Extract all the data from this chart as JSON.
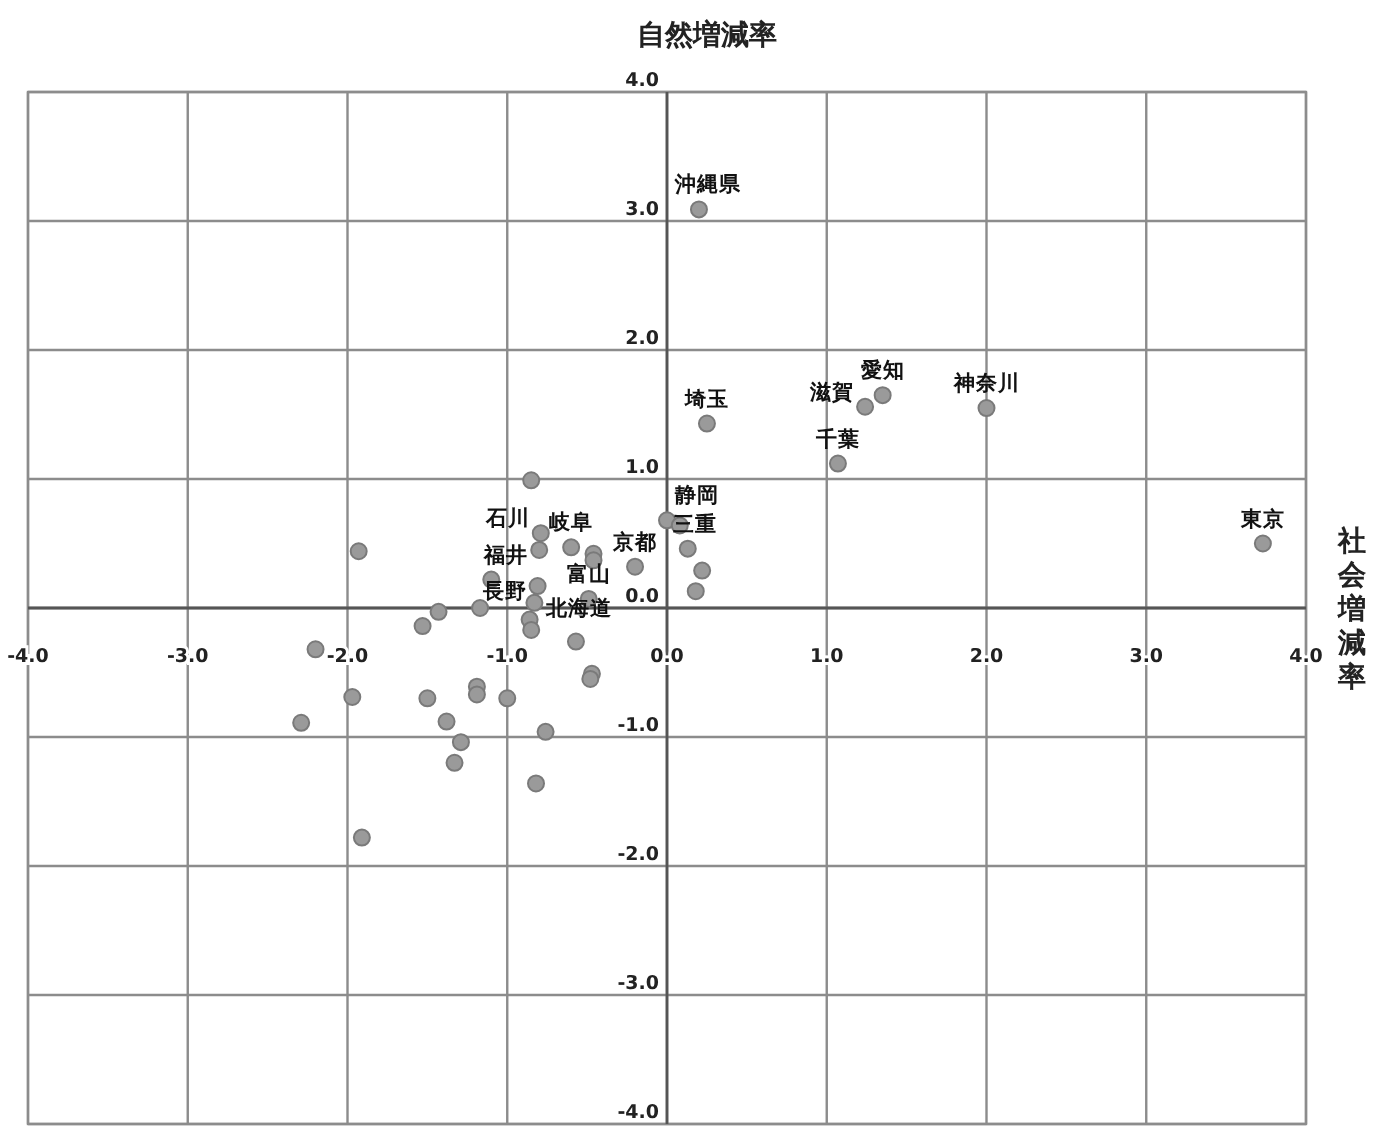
{
  "chart_data": {
    "type": "scatter",
    "ylabel": "自然増減率",
    "xlabel": "社会増減率",
    "color": "#9a9a9a",
    "marker": "circle",
    "grid": true,
    "xlim": [
      -4,
      4
    ],
    "ylim": [
      -4,
      4
    ],
    "xticks": [
      {
        "value": -4,
        "label": "-4.0"
      },
      {
        "value": -3,
        "label": "-3.0"
      },
      {
        "value": -2,
        "label": "-2.0"
      },
      {
        "value": -1,
        "label": "-1.0"
      },
      {
        "value": 0,
        "label": "0.0"
      },
      {
        "value": 1,
        "label": "1.0"
      },
      {
        "value": 2,
        "label": "2.0"
      },
      {
        "value": 3,
        "label": "3.0"
      },
      {
        "value": 4,
        "label": "4.0"
      }
    ],
    "yticks": [
      {
        "value": -4,
        "label": "-4.0"
      },
      {
        "value": -3,
        "label": "-3.0"
      },
      {
        "value": -2,
        "label": "-2.0"
      },
      {
        "value": -1,
        "label": "-1.0"
      },
      {
        "value": 0,
        "label": "0.0"
      },
      {
        "value": 1,
        "label": "1.0"
      },
      {
        "value": 2,
        "label": "2.0"
      },
      {
        "value": 3,
        "label": "3.0"
      },
      {
        "value": 4,
        "label": "4.0"
      }
    ],
    "x": [
      3.73,
      2.0,
      1.35,
      1.24,
      1.07,
      0.25,
      0.2,
      0.0,
      0.08,
      0.13,
      0.22,
      0.18,
      -0.2,
      -0.6,
      -0.46,
      -0.46,
      -0.49,
      -0.79,
      -0.8,
      -0.85,
      -0.81,
      -0.83,
      -1.1,
      -1.93,
      -1.17,
      -1.43,
      -1.53,
      -0.86,
      -0.85,
      -0.57,
      -0.47,
      -0.48,
      -2.2,
      -1.97,
      -2.29,
      -1.91,
      -1.5,
      -1.19,
      -1.19,
      -1.0,
      -1.38,
      -1.29,
      -1.33,
      -0.76,
      -0.82
    ],
    "values": [
      0.5,
      1.55,
      1.65,
      1.56,
      1.12,
      1.43,
      3.09,
      0.68,
      0.64,
      0.46,
      0.29,
      0.13,
      0.32,
      0.47,
      0.42,
      0.37,
      0.07,
      0.58,
      0.45,
      0.99,
      0.17,
      0.04,
      0.22,
      0.44,
      0.0,
      -0.03,
      -0.14,
      -0.09,
      -0.17,
      -0.26,
      -0.51,
      -0.55,
      -0.32,
      -0.69,
      -0.89,
      -1.78,
      -0.7,
      -0.61,
      -0.67,
      -0.7,
      -0.88,
      -1.04,
      -1.2,
      -0.96,
      -1.36
    ],
    "annotations": [
      {
        "text": "東京",
        "x": 3.73,
        "y": 0.5
      },
      {
        "text": "神奈川",
        "x": 2.0,
        "y": 1.55
      },
      {
        "text": "愛知",
        "x": 1.35,
        "y": 1.65
      },
      {
        "text": "滋賀",
        "x": 1.24,
        "y": 1.56
      },
      {
        "text": "千葉",
        "x": 1.07,
        "y": 1.12
      },
      {
        "text": "埼玉",
        "x": 0.25,
        "y": 1.43
      },
      {
        "text": "沖縄県",
        "x": 0.2,
        "y": 3.09
      },
      {
        "text": "静岡",
        "x": 0.0,
        "y": 0.68
      },
      {
        "text": "三重",
        "x": 0.13,
        "y": 0.46
      },
      {
        "text": "京都",
        "x": -0.2,
        "y": 0.32
      },
      {
        "text": "岐阜",
        "x": -0.6,
        "y": 0.47
      },
      {
        "text": "富山",
        "x": -0.49,
        "y": 0.07
      },
      {
        "text": "石川",
        "x": -0.79,
        "y": 0.58
      },
      {
        "text": "福井",
        "x": -0.8,
        "y": 0.45
      },
      {
        "text": "長野",
        "x": -0.81,
        "y": 0.17
      },
      {
        "text": "北海道",
        "x": -0.83,
        "y": 0.04
      }
    ]
  }
}
